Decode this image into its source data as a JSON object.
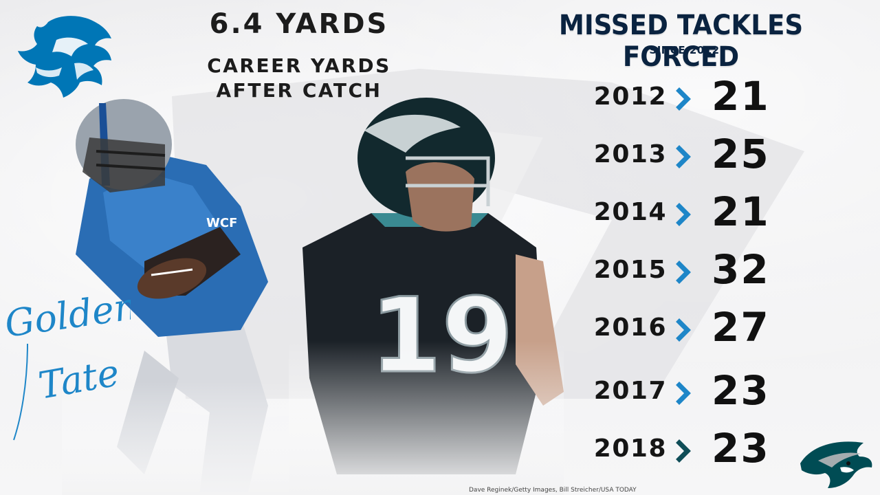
{
  "headline": {
    "stat": "6.4 YARDS",
    "line1": "CAREER YARDS",
    "line2": "AFTER CATCH"
  },
  "panel": {
    "title": "MISSED TACKLES FORCED",
    "subtitle": "SINCE 2012"
  },
  "stats": [
    {
      "year": "2012",
      "value": "21"
    },
    {
      "year": "2013",
      "value": "25"
    },
    {
      "year": "2014",
      "value": "21"
    },
    {
      "year": "2015",
      "value": "32"
    },
    {
      "year": "2016",
      "value": "27"
    },
    {
      "year": "2017",
      "value": "23"
    },
    {
      "year": "2018",
      "value": "23"
    }
  ],
  "signature": {
    "line1": "Golden",
    "line2": "Tate"
  },
  "player_right": {
    "jersey_number": "19"
  },
  "credit": "Dave Reginek/Getty Images, Bill Streicher/USA TODAY",
  "colors": {
    "lions_blue": "#0076B6",
    "eagles_green": "#004C54",
    "panel_navy": "#0a2340",
    "chevron_blue": "#1e86c8",
    "chevron_dark": "#0f4d57"
  },
  "icons": {
    "lions_logo": "lion-logo-icon",
    "eagles_logo": "eagle-logo-icon",
    "chevron": "chevron-right-icon"
  }
}
